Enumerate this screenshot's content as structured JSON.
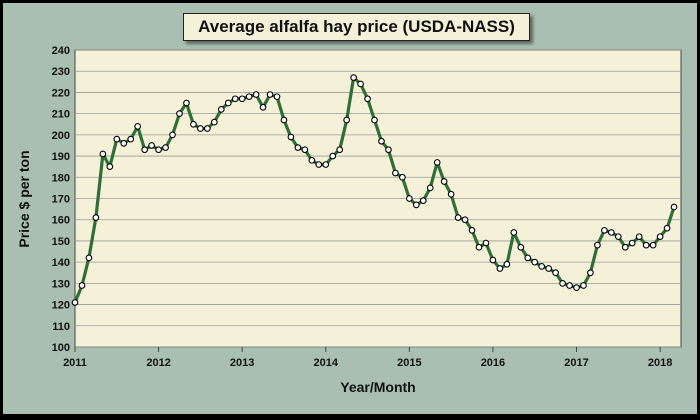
{
  "chart_data": {
    "type": "line",
    "title": "Average alfalfa hay price (USDA-NASS)",
    "xlabel": "Year/Month",
    "ylabel": "Price $ per ton",
    "ylim": [
      100,
      240
    ],
    "ytick_step": 10,
    "xlim": [
      2011,
      2018.25
    ],
    "xticks": [
      2011,
      2012,
      2013,
      2014,
      2015,
      2016,
      2017,
      2018
    ],
    "grid": true,
    "colors": {
      "line": "#2f6e36",
      "marker_fill": "#ffffff",
      "marker_edge": "#000000",
      "plot_background": "#f4f1d8",
      "frame_background": "#a9bfb1"
    },
    "series": [
      {
        "values": [
          121,
          129,
          142,
          161,
          191,
          185,
          198,
          196,
          198,
          204,
          193,
          195,
          193,
          194,
          200,
          210,
          215,
          205,
          203,
          203,
          206,
          212,
          215,
          217,
          217,
          218,
          219,
          213,
          219,
          218,
          207,
          199,
          194,
          193,
          188,
          186,
          186,
          190,
          193,
          207,
          227,
          224,
          217,
          207,
          197,
          193,
          182,
          180,
          170,
          167,
          169,
          175,
          187,
          178,
          172,
          161,
          160,
          155,
          147,
          149,
          141,
          137,
          139,
          154,
          147,
          142,
          140,
          138,
          137,
          135,
          130,
          129,
          128,
          129,
          135,
          148,
          155,
          154,
          152,
          147,
          149,
          152,
          148,
          148,
          152,
          156,
          166
        ]
      }
    ]
  }
}
